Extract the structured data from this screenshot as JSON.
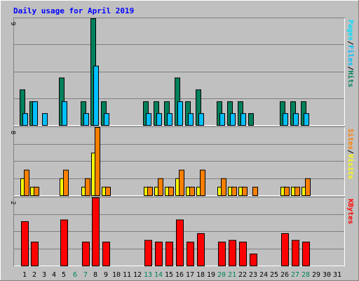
{
  "title": "Daily usage for April 2019",
  "colors": {
    "background": "#C0C0C0",
    "title": "#0000FF",
    "frame_light": "#FFFFFF",
    "frame_dark": "#808080",
    "grid": "#808080",
    "weekend_day": "#00805C",
    "weekday": "#000000",
    "hits": "#00805C",
    "files": "#00C0FF",
    "pages": "#00E0FF",
    "visits": "#FFFF00",
    "sites": "#FF8000",
    "kbytes": "#FF0000"
  },
  "chart_data": {
    "type": "bar",
    "title": "Daily usage for April 2019",
    "categories": [
      "1",
      "2",
      "3",
      "4",
      "5",
      "6",
      "7",
      "8",
      "9",
      "10",
      "11",
      "12",
      "13",
      "14",
      "15",
      "16",
      "17",
      "18",
      "19",
      "20",
      "21",
      "22",
      "23",
      "24",
      "25",
      "26",
      "27",
      "28",
      "29",
      "30",
      "31"
    ],
    "weekend_days": [
      6,
      7,
      13,
      14,
      20,
      21,
      27,
      28
    ],
    "panels": [
      {
        "id": "hits_files_pages",
        "ymax_label": "9",
        "ylim": [
          0,
          9
        ],
        "legend": [
          {
            "text": "Pages",
            "color_key": "pages"
          },
          {
            "text": "/",
            "color_key": "weekday"
          },
          {
            "text": "Files",
            "color_key": "files"
          },
          {
            "text": "/",
            "color_key": "weekday"
          },
          {
            "text": "Hits",
            "color_key": "hits"
          }
        ],
        "series": [
          {
            "name": "Hits",
            "color_key": "hits",
            "values": [
              3,
              2,
              0,
              0,
              4,
              0,
              2,
              9,
              2,
              0,
              0,
              0,
              2,
              2,
              2,
              4,
              2,
              3,
              0,
              2,
              2,
              2,
              1,
              0,
              0,
              2,
              2,
              2,
              0,
              0,
              0
            ]
          },
          {
            "name": "Files",
            "color_key": "files",
            "values": [
              1,
              2,
              1,
              0,
              2,
              0,
              1,
              5,
              1,
              0,
              0,
              0,
              1,
              1,
              1,
              2,
              1,
              1,
              0,
              1,
              1,
              1,
              0,
              0,
              0,
              1,
              1,
              1,
              0,
              0,
              0
            ]
          },
          {
            "name": "Pages",
            "color_key": "pages",
            "values": [
              0,
              0,
              0,
              0,
              0,
              0,
              0,
              0,
              0,
              0,
              0,
              0,
              0,
              0,
              0,
              0,
              0,
              0,
              0,
              0,
              0,
              0,
              0,
              0,
              0,
              0,
              0,
              0,
              0,
              0,
              0
            ]
          }
        ]
      },
      {
        "id": "visits_sites",
        "ymax_label": "8",
        "ylim": [
          0,
          8
        ],
        "legend": [
          {
            "text": "Sites",
            "color_key": "sites"
          },
          {
            "text": "/",
            "color_key": "weekday"
          },
          {
            "text": "Visits",
            "color_key": "visits"
          }
        ],
        "series": [
          {
            "name": "Visits",
            "color_key": "visits",
            "values": [
              2,
              1,
              0,
              0,
              2,
              0,
              1,
              5,
              1,
              0,
              0,
              0,
              1,
              1,
              1,
              2,
              1,
              1,
              0,
              1,
              1,
              1,
              0,
              0,
              0,
              1,
              1,
              1,
              0,
              0,
              0
            ]
          },
          {
            "name": "Sites",
            "color_key": "sites",
            "values": [
              3,
              1,
              0,
              0,
              3,
              0,
              2,
              8,
              1,
              0,
              0,
              0,
              1,
              2,
              1,
              3,
              1,
              3,
              0,
              2,
              1,
              1,
              1,
              0,
              0,
              1,
              1,
              2,
              0,
              0,
              0
            ]
          }
        ]
      },
      {
        "id": "kbytes",
        "ymax_label": "2",
        "ylim": [
          0,
          2
        ],
        "legend": [
          {
            "text": "KBytes",
            "color_key": "kbytes"
          }
        ],
        "series": [
          {
            "name": "KBytes",
            "color_key": "kbytes",
            "values": [
              1.3,
              0.7,
              0,
              0,
              1.35,
              0,
              0.7,
              2.0,
              0.7,
              0,
              0,
              0,
              0.75,
              0.7,
              0.7,
              1.35,
              0.7,
              0.95,
              0,
              0.7,
              0.75,
              0.7,
              0.35,
              0,
              0,
              0.95,
              0.75,
              0.7,
              0,
              0,
              0
            ]
          }
        ]
      }
    ]
  }
}
